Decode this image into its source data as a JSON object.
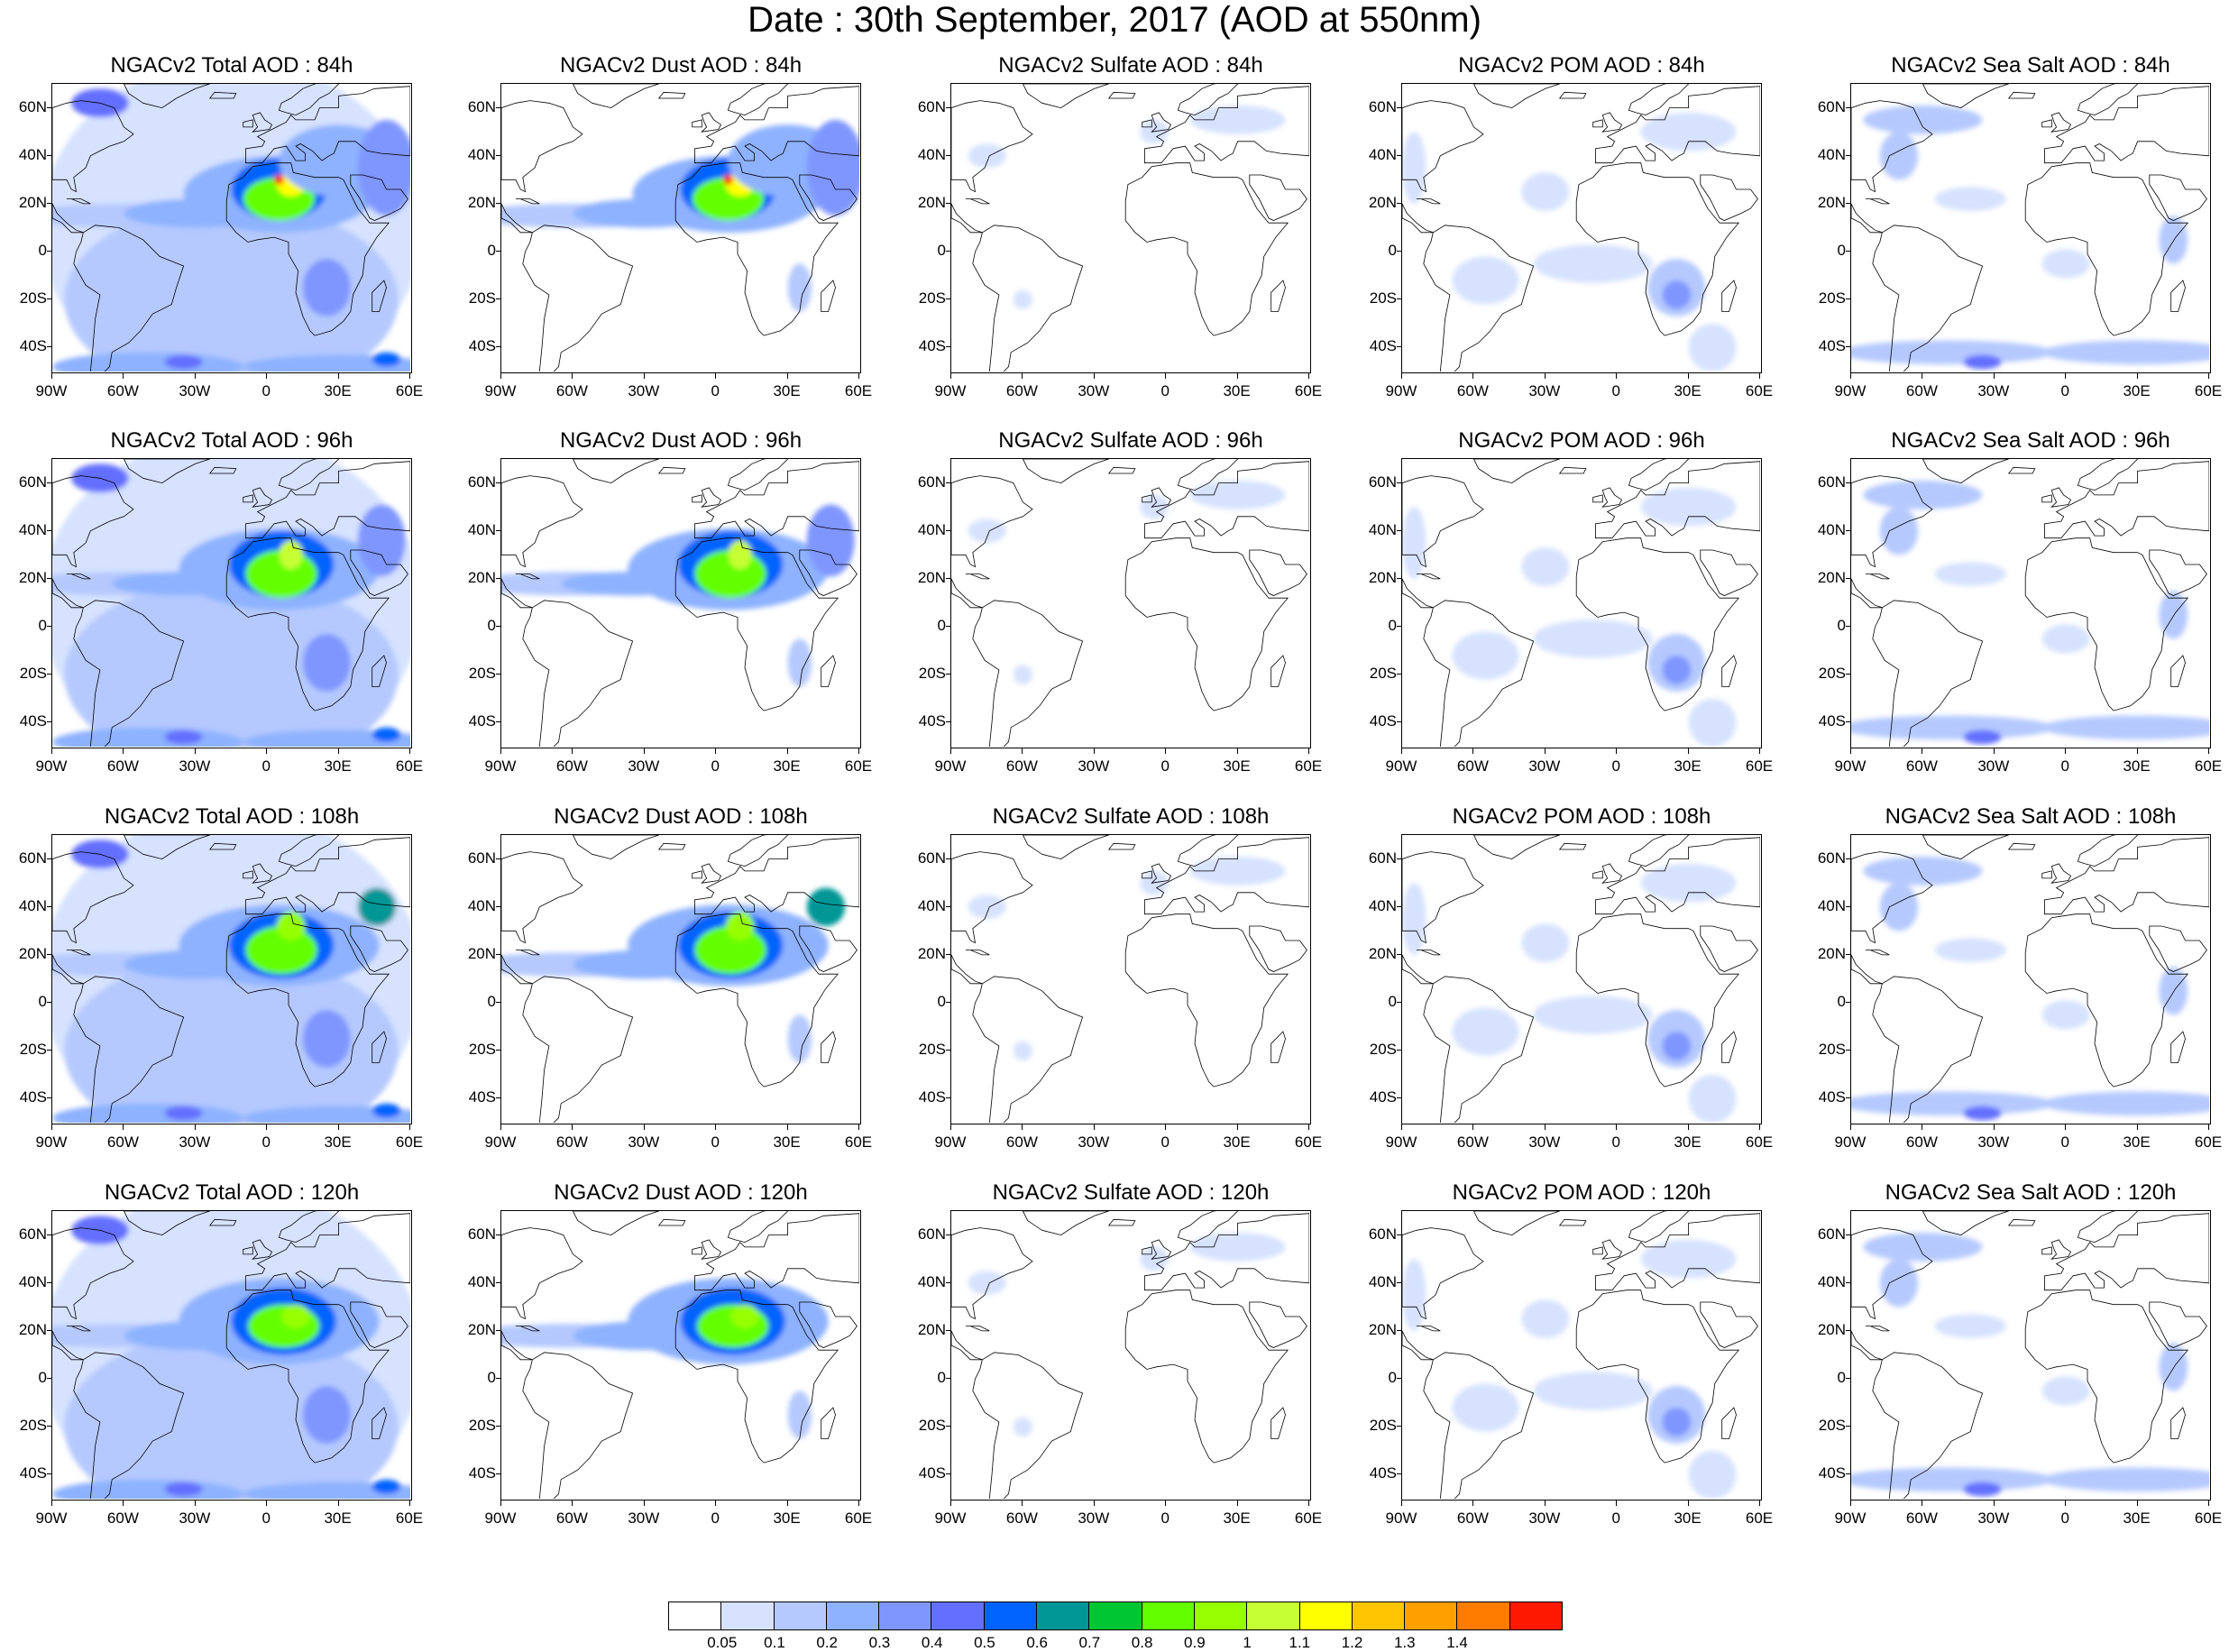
{
  "title": "Date : 30th September, 2017 (AOD at 550nm)",
  "lat_labels": [
    "60N",
    "40N",
    "20N",
    "0",
    "20S",
    "40S"
  ],
  "lon_labels": [
    "90W",
    "60W",
    "30W",
    "0",
    "30E",
    "60E"
  ],
  "panels": [
    [
      {
        "title": "NGACv2 Total AOD : 84h",
        "species": "total",
        "hour": 84
      },
      {
        "title": "NGACv2 Dust AOD : 84h",
        "species": "dust",
        "hour": 84
      },
      {
        "title": "NGACv2 Sulfate AOD : 84h",
        "species": "sulfate",
        "hour": 84
      },
      {
        "title": "NGACv2 POM AOD : 84h",
        "species": "pom",
        "hour": 84
      },
      {
        "title": "NGACv2 Sea Salt AOD : 84h",
        "species": "seasalt",
        "hour": 84
      }
    ],
    [
      {
        "title": "NGACv2 Total AOD : 96h",
        "species": "total",
        "hour": 96
      },
      {
        "title": "NGACv2 Dust AOD : 96h",
        "species": "dust",
        "hour": 96
      },
      {
        "title": "NGACv2 Sulfate AOD : 96h",
        "species": "sulfate",
        "hour": 96
      },
      {
        "title": "NGACv2 POM AOD : 96h",
        "species": "pom",
        "hour": 96
      },
      {
        "title": "NGACv2 Sea Salt AOD : 96h",
        "species": "seasalt",
        "hour": 96
      }
    ],
    [
      {
        "title": "NGACv2 Total AOD : 108h",
        "species": "total",
        "hour": 108
      },
      {
        "title": "NGACv2 Dust AOD : 108h",
        "species": "dust",
        "hour": 108
      },
      {
        "title": "NGACv2 Sulfate AOD : 108h",
        "species": "sulfate",
        "hour": 108
      },
      {
        "title": "NGACv2 POM AOD : 108h",
        "species": "pom",
        "hour": 108
      },
      {
        "title": "NGACv2 Sea Salt AOD : 108h",
        "species": "seasalt",
        "hour": 108
      }
    ],
    [
      {
        "title": "NGACv2 Total AOD : 120h",
        "species": "total",
        "hour": 120
      },
      {
        "title": "NGACv2 Dust AOD : 120h",
        "species": "dust",
        "hour": 120
      },
      {
        "title": "NGACv2 Sulfate AOD : 120h",
        "species": "sulfate",
        "hour": 120
      },
      {
        "title": "NGACv2 POM AOD : 120h",
        "species": "pom",
        "hour": 120
      },
      {
        "title": "NGACv2 Sea Salt  AOD : 120h",
        "species": "seasalt",
        "hour": 120
      }
    ]
  ],
  "colorbar": {
    "colors": [
      "#ffffff",
      "#d6e2ff",
      "#b5c9ff",
      "#8eb2ff",
      "#7f96ff",
      "#6370ff",
      "#0063ff",
      "#009696",
      "#00c633",
      "#63ff00",
      "#96ff00",
      "#c6ff33",
      "#ffff00",
      "#ffc600",
      "#ffa000",
      "#ff7c00",
      "#ff1900"
    ],
    "labels": [
      "0.05",
      "0.1",
      "0.2",
      "0.3",
      "0.4",
      "0.5",
      "0.6",
      "0.7",
      "0.8",
      "0.9",
      "1",
      "1.1",
      "1.2",
      "1.3",
      "1.4"
    ]
  }
}
